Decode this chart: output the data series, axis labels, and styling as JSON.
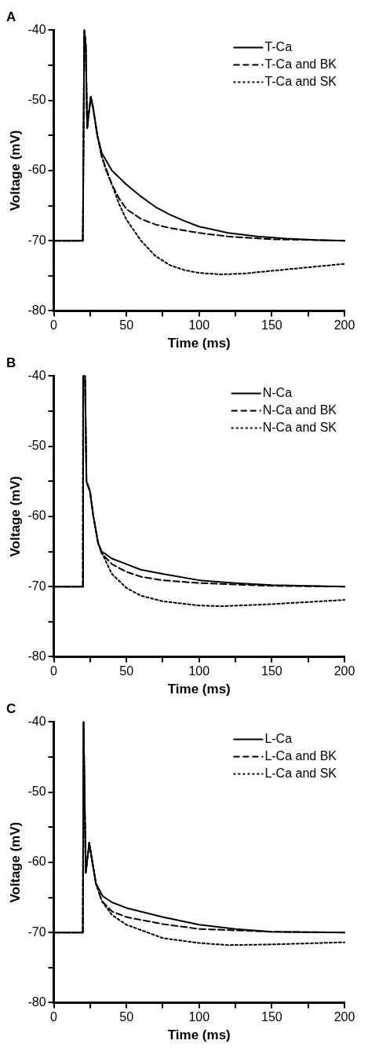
{
  "chart_data": [
    {
      "type": "line",
      "title": "A",
      "xlabel": "Time (ms)",
      "ylabel": "Voltage (mV)",
      "xlim": [
        0,
        200
      ],
      "ylim": [
        -80,
        -40
      ],
      "xticks": [
        0,
        {
          "value": 25,
          "label": null
        },
        50,
        {
          "value": 75,
          "label": null
        },
        100,
        {
          "value": 125,
          "label": null
        },
        150,
        {
          "value": 175,
          "label": null
        },
        200
      ],
      "yticks": [
        -80,
        {
          "value": -75,
          "label": null
        },
        -70,
        {
          "value": -65,
          "label": null
        },
        -60,
        {
          "value": -55,
          "label": null
        },
        -50,
        {
          "value": -45,
          "label": null
        },
        -40
      ],
      "grid": false,
      "legend": "top right",
      "series": [
        {
          "name": "T-Ca",
          "color": "#000000",
          "line_style": "solid",
          "x": [
            0,
            20,
            20.5,
            21,
            22,
            23,
            24,
            25.5,
            27,
            30,
            33,
            40,
            50,
            60,
            70,
            80,
            90,
            100,
            120,
            140,
            160,
            180,
            200
          ],
          "values": [
            -70,
            -70,
            -55,
            -40,
            -42,
            -54,
            -52,
            -49.5,
            -51,
            -55,
            -57.5,
            -60,
            -62,
            -63.7,
            -65.2,
            -66.3,
            -67.2,
            -68,
            -68.9,
            -69.4,
            -69.7,
            -69.9,
            -70
          ]
        },
        {
          "name": "T-Ca and BK",
          "color": "#000000",
          "line_style": "dashed",
          "x": [
            0,
            20,
            20.5,
            21,
            22,
            23,
            24,
            25.5,
            27,
            30,
            33,
            40,
            45,
            50,
            60,
            70,
            80,
            100,
            120,
            150,
            200
          ],
          "values": [
            -70,
            -70,
            -55,
            -40,
            -42,
            -54,
            -52,
            -49.5,
            -51,
            -55,
            -58,
            -62,
            -64,
            -65.5,
            -66.9,
            -67.7,
            -68.2,
            -68.9,
            -69.4,
            -69.8,
            -70
          ]
        },
        {
          "name": "T-Ca and SK",
          "color": "#000000",
          "line_style": "dotted",
          "x": [
            0,
            20,
            20.5,
            21,
            22,
            23,
            24,
            25.5,
            27,
            30,
            33,
            36,
            40,
            45,
            50,
            60,
            70,
            80,
            90,
            100,
            115,
            130,
            150,
            175,
            200
          ],
          "values": [
            -70,
            -70,
            -55,
            -40,
            -42,
            -54,
            -52,
            -49.5,
            -51,
            -55,
            -58,
            -60,
            -62,
            -64.8,
            -67,
            -70,
            -72.2,
            -73.5,
            -74.2,
            -74.6,
            -74.8,
            -74.7,
            -74.3,
            -73.8,
            -73.3
          ]
        }
      ]
    },
    {
      "type": "line",
      "title": "B",
      "xlabel": "Time (ms)",
      "ylabel": "Voltage (mV)",
      "xlim": [
        0,
        200
      ],
      "ylim": [
        -80,
        -40
      ],
      "xticks": [
        0,
        {
          "value": 25,
          "label": null
        },
        50,
        {
          "value": 75,
          "label": null
        },
        100,
        {
          "value": 125,
          "label": null
        },
        150,
        {
          "value": 175,
          "label": null
        },
        200
      ],
      "yticks": [
        -80,
        {
          "value": -75,
          "label": null
        },
        -70,
        {
          "value": -65,
          "label": null
        },
        -60,
        {
          "value": -55,
          "label": null
        },
        -50,
        {
          "value": -45,
          "label": null
        },
        -40
      ],
      "grid": false,
      "legend": "top right",
      "series": [
        {
          "name": "N-Ca",
          "color": "#000000",
          "line_style": "solid",
          "x": [
            0,
            20,
            20.2,
            21.5,
            22.5,
            25,
            27,
            30.5,
            33,
            40,
            50,
            60,
            75,
            100,
            125,
            150,
            200
          ],
          "values": [
            -70,
            -70,
            -40,
            -40,
            -55,
            -56.5,
            -59.7,
            -63.8,
            -65,
            -66,
            -66.8,
            -67.6,
            -68.2,
            -69.1,
            -69.5,
            -69.8,
            -70
          ]
        },
        {
          "name": "N-Ca and BK",
          "color": "#000000",
          "line_style": "dashed",
          "x": [
            0,
            20,
            20.2,
            21.5,
            22.5,
            25,
            27,
            30.5,
            33,
            40,
            50,
            60,
            75,
            100,
            150,
            200
          ],
          "values": [
            -70,
            -70,
            -40,
            -40,
            -55,
            -56.5,
            -59.7,
            -63.8,
            -65.3,
            -66.8,
            -67.9,
            -68.6,
            -69.1,
            -69.5,
            -69.9,
            -70
          ]
        },
        {
          "name": "N-Ca and SK",
          "color": "#000000",
          "line_style": "dotted",
          "x": [
            0,
            20,
            20.2,
            21.5,
            22.5,
            25,
            27,
            30.5,
            34,
            40,
            50,
            60,
            75,
            100,
            115,
            150,
            200
          ],
          "values": [
            -70,
            -70,
            -40,
            -40,
            -55,
            -56.5,
            -59.7,
            -63.8,
            -65.6,
            -68.2,
            -70.2,
            -71.3,
            -72.1,
            -72.7,
            -72.8,
            -72.5,
            -71.9
          ]
        }
      ]
    },
    {
      "type": "line",
      "title": "C",
      "xlabel": "Time (ms)",
      "ylabel": "Voltage (mV)",
      "xlim": [
        0,
        200
      ],
      "ylim": [
        -80,
        -40
      ],
      "xticks": [
        0,
        {
          "value": 25,
          "label": null
        },
        50,
        {
          "value": 75,
          "label": null
        },
        100,
        {
          "value": 125,
          "label": null
        },
        150,
        {
          "value": 175,
          "label": null
        },
        200
      ],
      "yticks": [
        -80,
        {
          "value": -75,
          "label": null
        },
        -70,
        {
          "value": -65,
          "label": null
        },
        -60,
        {
          "value": -55,
          "label": null
        },
        -50,
        {
          "value": -45,
          "label": null
        },
        -40
      ],
      "grid": false,
      "legend": "top right",
      "series": [
        {
          "name": "L-Ca",
          "color": "#000000",
          "line_style": "solid",
          "x": [
            0,
            20,
            20.5,
            22,
            24.4,
            26.6,
            29,
            33.6,
            40,
            50,
            75,
            100,
            125,
            150,
            200
          ],
          "values": [
            -70,
            -70,
            -40,
            -61.5,
            -57.2,
            -60,
            -63,
            -64.8,
            -65.7,
            -66.5,
            -67.8,
            -68.9,
            -69.5,
            -69.9,
            -70
          ]
        },
        {
          "name": "L-Ca and BK",
          "color": "#000000",
          "line_style": "dashed",
          "x": [
            0,
            20,
            20.5,
            22,
            24.4,
            26.6,
            29,
            33,
            40,
            50,
            75,
            100,
            150,
            200
          ],
          "values": [
            -70,
            -70,
            -40,
            -61.5,
            -57.2,
            -60,
            -63,
            -65.5,
            -67,
            -67.8,
            -68.8,
            -69.5,
            -69.9,
            -70
          ]
        },
        {
          "name": "L-Ca and SK",
          "color": "#000000",
          "line_style": "dotted",
          "x": [
            0,
            20,
            20.5,
            22,
            24.4,
            26.6,
            29,
            33,
            40,
            50,
            75,
            100,
            120,
            150,
            200
          ],
          "values": [
            -70,
            -70,
            -40,
            -61.5,
            -57.2,
            -60,
            -63,
            -65.5,
            -67.5,
            -68.9,
            -70.8,
            -71.5,
            -71.8,
            -71.7,
            -71.4
          ]
        }
      ]
    }
  ]
}
